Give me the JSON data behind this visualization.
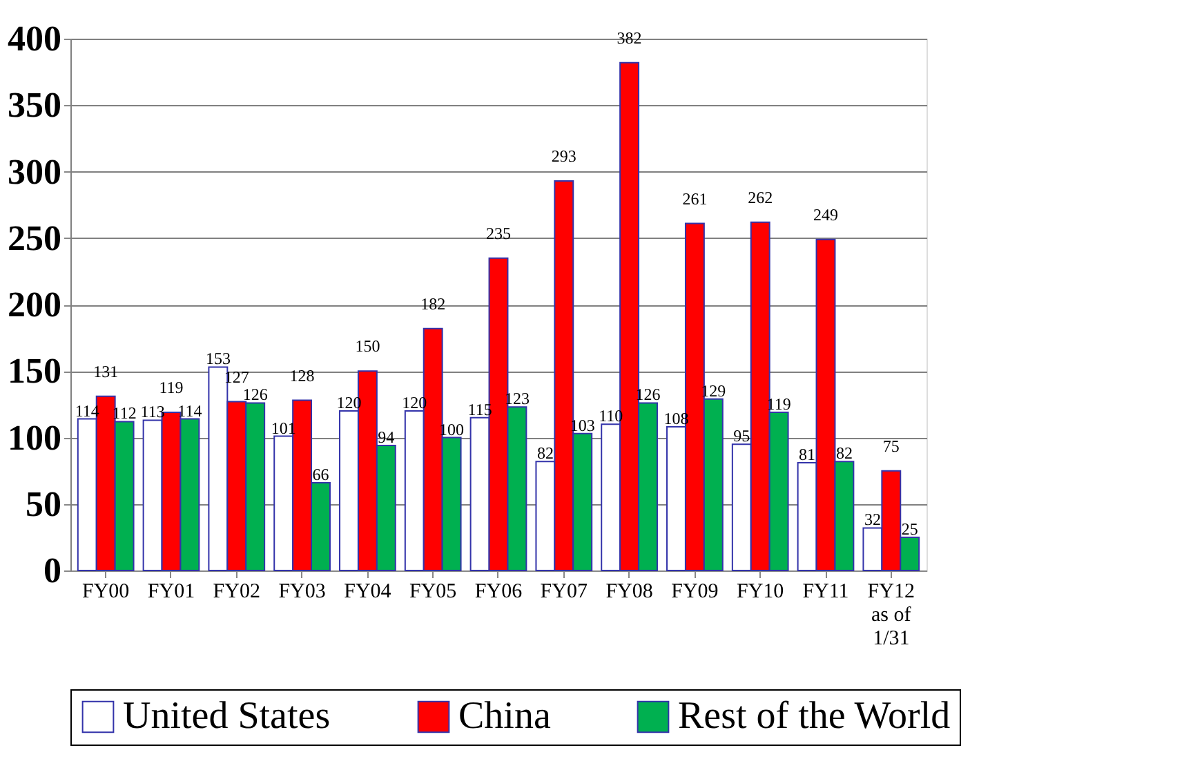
{
  "chart_data": {
    "type": "bar",
    "categories": [
      "FY00",
      "FY01",
      "FY02",
      "FY03",
      "FY04",
      "FY05",
      "FY06",
      "FY07",
      "FY08",
      "FY09",
      "FY10",
      "FY11",
      "FY12\nas of\n1/31"
    ],
    "series": [
      {
        "name": "United States",
        "color": "#ffffff",
        "values": [
          114,
          113,
          153,
          101,
          120,
          120,
          115,
          82,
          110,
          108,
          95,
          81,
          32
        ]
      },
      {
        "name": "China",
        "color": "#ff0000",
        "values": [
          131,
          119,
          127,
          128,
          150,
          182,
          235,
          293,
          382,
          261,
          262,
          249,
          75
        ]
      },
      {
        "name": "Rest of the World",
        "color": "#00b050",
        "values": [
          112,
          114,
          126,
          66,
          94,
          100,
          123,
          103,
          126,
          129,
          119,
          82,
          25
        ]
      }
    ],
    "ylim": [
      0,
      400
    ],
    "yticks": [
      0,
      50,
      100,
      150,
      200,
      250,
      300,
      350,
      400
    ],
    "grid": "y",
    "legend": "bottom",
    "data_labels": true
  }
}
